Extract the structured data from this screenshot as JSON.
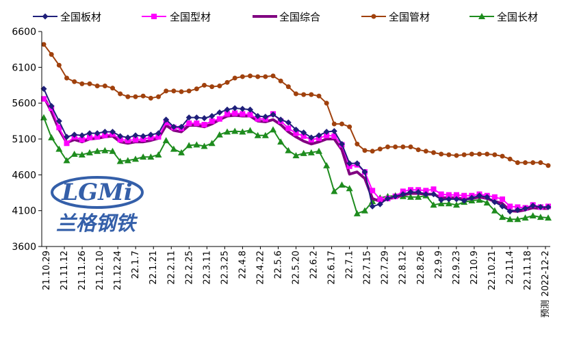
{
  "colors": {
    "plate": "#1F1F7A",
    "section": "#FF00FF",
    "composite": "#800080",
    "pipe": "#A0410D",
    "long": "#1E8C1E",
    "watermark_blue": "#1F4EA0"
  },
  "watermark": {
    "logo_text": "LGMi",
    "cn_text": "兰格钢铁"
  },
  "chart_data": {
    "type": "line",
    "title": "",
    "xlabel": "",
    "ylabel": "",
    "ylim": [
      3600,
      6600
    ],
    "yticks": [
      3600,
      4100,
      4600,
      5100,
      5600,
      6100,
      6600
    ],
    "grid": false,
    "legend": "top",
    "x_tick_labels": [
      "21.10.29",
      "21.11.12",
      "21.11.26",
      "21.12.10",
      "21.12.24",
      "22.1.7",
      "22.1.21",
      "22.2.11",
      "22.2.25",
      "22.3.11",
      "22.3.25",
      "22.4.8",
      "22.4.22",
      "22.5.6",
      "22.5.20",
      "22.6.2",
      "22.6.17",
      "22.7.1",
      "22.7.15",
      "22.7.29",
      "22.8.12",
      "22.8.26",
      "22.9.9",
      "22.9.23",
      "22.10.9",
      "22.10.21",
      "22.11.4",
      "22.11.18",
      "2022-12-2"
    ],
    "x_end_note": "预测",
    "series": [
      {
        "name": "全国板材",
        "color": "#1F1F7A",
        "marker": "diamond",
        "values": [
          5800,
          5560,
          5350,
          5130,
          5160,
          5150,
          5180,
          5180,
          5200,
          5200,
          5140,
          5120,
          5150,
          5140,
          5160,
          5180,
          5370,
          5270,
          5270,
          5400,
          5400,
          5390,
          5420,
          5470,
          5510,
          5530,
          5520,
          5510,
          5420,
          5410,
          5440,
          5370,
          5330,
          5230,
          5190,
          5120,
          5150,
          5200,
          5210,
          5030,
          4760,
          4760,
          4640,
          4160,
          4190,
          4270,
          4300,
          4330,
          4360,
          4360,
          4330,
          4330,
          4250,
          4260,
          4260,
          4240,
          4280,
          4310,
          4290,
          4220,
          4160,
          4090,
          4110,
          4130,
          4170,
          4150,
          4150
        ]
      },
      {
        "name": "全国型材",
        "color": "#FF00FF",
        "marker": "square",
        "values": [
          5660,
          5530,
          5260,
          5040,
          5130,
          5090,
          5120,
          5130,
          5150,
          5170,
          5090,
          5080,
          5090,
          5100,
          5120,
          5130,
          5330,
          5260,
          5250,
          5320,
          5320,
          5300,
          5350,
          5380,
          5450,
          5460,
          5450,
          5440,
          5380,
          5380,
          5450,
          5350,
          5250,
          5180,
          5140,
          5090,
          5110,
          5150,
          5140,
          5020,
          4720,
          4740,
          4640,
          4380,
          4260,
          4270,
          4300,
          4370,
          4390,
          4390,
          4380,
          4400,
          4330,
          4320,
          4320,
          4310,
          4310,
          4330,
          4310,
          4290,
          4260,
          4160,
          4150,
          4140,
          4180,
          4150,
          4160
        ]
      },
      {
        "name": "全国综合",
        "color": "#800080",
        "marker": "none",
        "values": [
          5690,
          5480,
          5230,
          5050,
          5090,
          5060,
          5100,
          5110,
          5130,
          5140,
          5060,
          5040,
          5060,
          5060,
          5080,
          5110,
          5290,
          5220,
          5200,
          5290,
          5290,
          5270,
          5310,
          5370,
          5420,
          5430,
          5420,
          5420,
          5350,
          5340,
          5370,
          5300,
          5200,
          5130,
          5070,
          5030,
          5060,
          5100,
          5100,
          4950,
          4610,
          4640,
          4550,
          4270,
          4230,
          4270,
          4280,
          4320,
          4340,
          4340,
          4330,
          4330,
          4280,
          4280,
          4280,
          4260,
          4270,
          4290,
          4270,
          4230,
          4200,
          4100,
          4090,
          4110,
          4140,
          4130,
          4130
        ]
      },
      {
        "name": "全国管材",
        "color": "#A0410D",
        "marker": "circle",
        "values": [
          6420,
          6280,
          6130,
          5950,
          5900,
          5870,
          5870,
          5840,
          5840,
          5810,
          5730,
          5690,
          5690,
          5700,
          5670,
          5690,
          5770,
          5770,
          5760,
          5770,
          5800,
          5850,
          5830,
          5840,
          5890,
          5950,
          5970,
          5980,
          5970,
          5970,
          5980,
          5910,
          5830,
          5730,
          5720,
          5720,
          5700,
          5600,
          5310,
          5310,
          5270,
          5030,
          4940,
          4930,
          4960,
          4990,
          4990,
          4990,
          4990,
          4950,
          4930,
          4910,
          4890,
          4880,
          4870,
          4880,
          4890,
          4890,
          4890,
          4880,
          4860,
          4820,
          4770,
          4770,
          4770,
          4770,
          4730
        ]
      },
      {
        "name": "全国长材",
        "color": "#1E8C1E",
        "marker": "triangle",
        "values": [
          5400,
          5120,
          4960,
          4800,
          4890,
          4880,
          4910,
          4930,
          4940,
          4930,
          4790,
          4800,
          4820,
          4850,
          4850,
          4880,
          5080,
          4960,
          4910,
          5010,
          5020,
          5000,
          5040,
          5160,
          5200,
          5210,
          5200,
          5220,
          5150,
          5150,
          5230,
          5060,
          4940,
          4870,
          4900,
          4910,
          4930,
          4730,
          4370,
          4460,
          4410,
          4060,
          4100,
          4230,
          4280,
          4300,
          4310,
          4300,
          4290,
          4290,
          4310,
          4180,
          4200,
          4200,
          4180,
          4220,
          4240,
          4250,
          4210,
          4100,
          4010,
          3980,
          3980,
          4000,
          4030,
          4010,
          4000
        ]
      }
    ]
  }
}
